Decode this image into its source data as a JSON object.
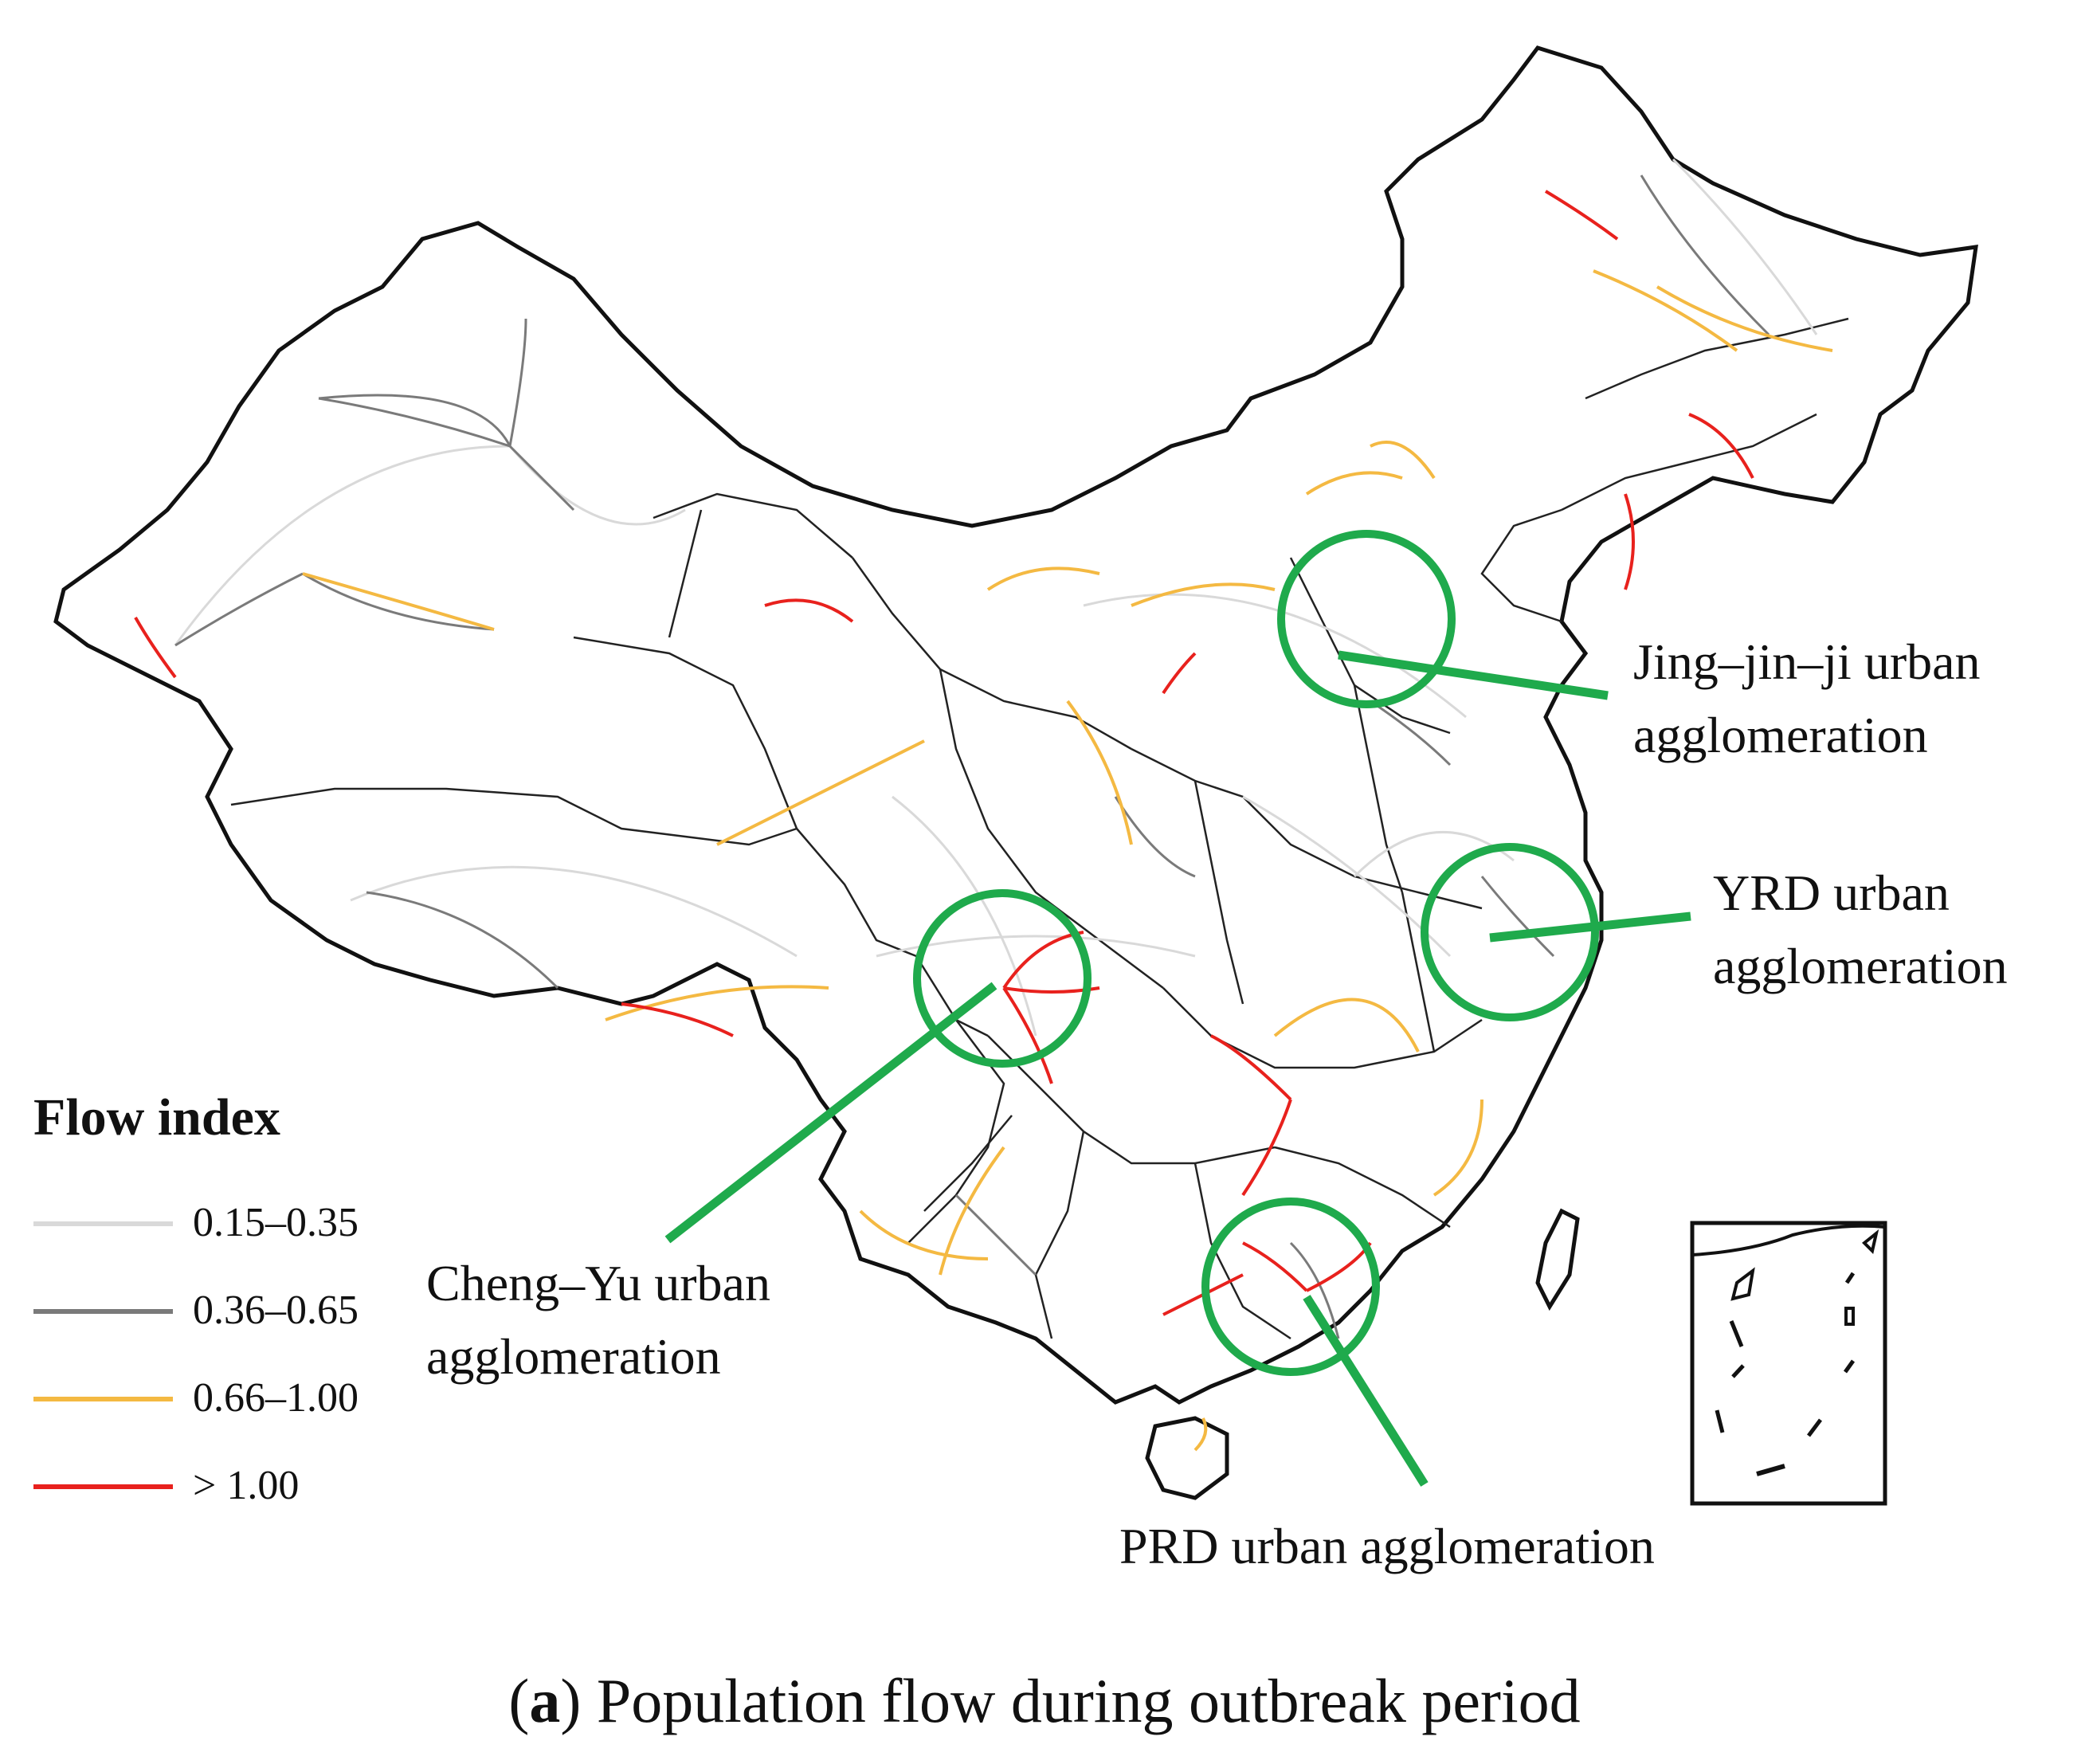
{
  "figure": {
    "caption_letter": "a",
    "caption_text": "Population flow during outbreak period"
  },
  "legend": {
    "title": "Flow index",
    "items": [
      {
        "label": "0.15–0.35",
        "color": "#d9d9d9"
      },
      {
        "label": "0.36–0.65",
        "color": "#7a7a7a"
      },
      {
        "label": "0.66–1.00",
        "color": "#f4b942"
      },
      {
        "label": "> 1.00",
        "color": "#e8211d"
      }
    ]
  },
  "callouts": {
    "jingjinji": {
      "line1": "Jing–jin–ji urban",
      "line2": "agglomeration"
    },
    "yrd": {
      "line1": "YRD urban",
      "line2": "agglomeration"
    },
    "chengyu": {
      "line1": "Cheng–Yu urban",
      "line2": "agglomeration"
    },
    "prd": {
      "line1": "PRD urban agglomeration"
    }
  },
  "colors": {
    "highlight_circle": "#1faa4c",
    "border": "#111111"
  }
}
